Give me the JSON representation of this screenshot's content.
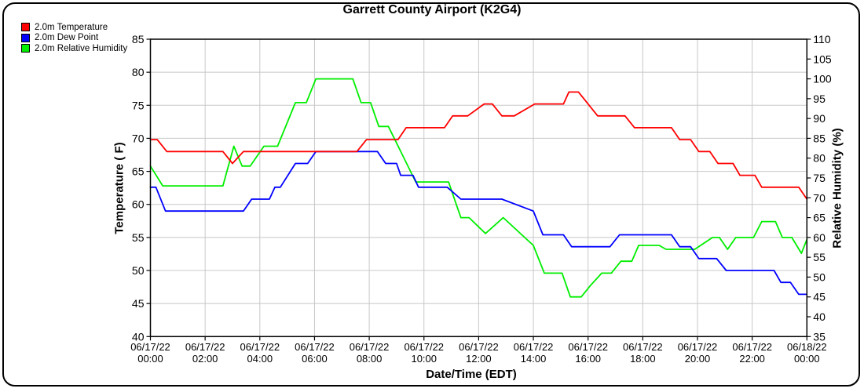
{
  "title": "Garrett County Airport (K2G4)",
  "legend": {
    "items": [
      {
        "label": "2.0m Temperature"
      },
      {
        "label": "2.0m Dew Point"
      },
      {
        "label": "2.0m Relative Humidity"
      }
    ]
  },
  "axes": {
    "y_left": {
      "title": "Temperature ( F)",
      "min": 40,
      "max": 85,
      "step": 5
    },
    "y_right": {
      "title": "Relative Humidity (%)",
      "min": 35,
      "max": 110,
      "step": 5
    },
    "x": {
      "title": "Date/Time (EDT)",
      "range_hours": [
        0,
        24
      ],
      "tick_step_hours": 2,
      "ticks": [
        {
          "date": "06/17/22",
          "time": "00:00"
        },
        {
          "date": "06/17/22",
          "time": "02:00"
        },
        {
          "date": "06/17/22",
          "time": "04:00"
        },
        {
          "date": "06/17/22",
          "time": "06:00"
        },
        {
          "date": "06/17/22",
          "time": "08:00"
        },
        {
          "date": "06/17/22",
          "time": "10:00"
        },
        {
          "date": "06/17/22",
          "time": "12:00"
        },
        {
          "date": "06/17/22",
          "time": "14:00"
        },
        {
          "date": "06/17/22",
          "time": "16:00"
        },
        {
          "date": "06/17/22",
          "time": "18:00"
        },
        {
          "date": "06/17/22",
          "time": "20:00"
        },
        {
          "date": "06/17/22",
          "time": "22:00"
        },
        {
          "date": "06/18/22",
          "time": "00:00"
        }
      ]
    }
  },
  "style": {
    "grid_color": "#c8c8c8",
    "axis_color": "#000000",
    "background": "#ffffff"
  },
  "chart_data": {
    "type": "line",
    "title": "Garrett County Airport (K2G4)",
    "grid": true,
    "x_range_hours": [
      0,
      24
    ],
    "series": [
      {
        "name": "2.0m Temperature",
        "axis": "left",
        "unit": "F",
        "color": "#ff0000",
        "points": [
          [
            0,
            69.8
          ],
          [
            0.25,
            69.8
          ],
          [
            0.6,
            68
          ],
          [
            2.65,
            68
          ],
          [
            3.0,
            66.2
          ],
          [
            3.4,
            68
          ],
          [
            7.55,
            68
          ],
          [
            7.9,
            69.8
          ],
          [
            9.05,
            69.8
          ],
          [
            9.35,
            71.6
          ],
          [
            10.75,
            71.6
          ],
          [
            11.05,
            73.4
          ],
          [
            11.6,
            73.4
          ],
          [
            12.2,
            75.2
          ],
          [
            12.5,
            75.2
          ],
          [
            12.85,
            73.4
          ],
          [
            13.3,
            73.4
          ],
          [
            14.05,
            75.2
          ],
          [
            15.1,
            75.2
          ],
          [
            15.3,
            77
          ],
          [
            15.65,
            77
          ],
          [
            16.35,
            73.4
          ],
          [
            17.35,
            73.4
          ],
          [
            17.7,
            71.6
          ],
          [
            19.05,
            71.6
          ],
          [
            19.35,
            69.8
          ],
          [
            19.75,
            69.8
          ],
          [
            20.05,
            68
          ],
          [
            20.45,
            68
          ],
          [
            20.75,
            66.2
          ],
          [
            21.3,
            66.2
          ],
          [
            21.55,
            64.4
          ],
          [
            22.1,
            64.4
          ],
          [
            22.35,
            62.6
          ],
          [
            23.7,
            62.6
          ],
          [
            24,
            60.8
          ]
        ]
      },
      {
        "name": "2.0m Dew Point",
        "axis": "left",
        "unit": "F",
        "color": "#0000ff",
        "points": [
          [
            0,
            62.6
          ],
          [
            0.2,
            62.6
          ],
          [
            0.55,
            59
          ],
          [
            3.4,
            59
          ],
          [
            3.7,
            60.8
          ],
          [
            4.35,
            60.8
          ],
          [
            4.55,
            62.6
          ],
          [
            4.75,
            62.6
          ],
          [
            5.3,
            66.2
          ],
          [
            5.75,
            66.2
          ],
          [
            6.05,
            68
          ],
          [
            8.3,
            68
          ],
          [
            8.6,
            66.2
          ],
          [
            9.0,
            66.2
          ],
          [
            9.15,
            64.4
          ],
          [
            9.6,
            64.4
          ],
          [
            9.8,
            62.6
          ],
          [
            10.85,
            62.6
          ],
          [
            11.35,
            60.8
          ],
          [
            12.85,
            60.8
          ],
          [
            14.0,
            59
          ],
          [
            14.35,
            55.4
          ],
          [
            15.1,
            55.4
          ],
          [
            15.4,
            53.6
          ],
          [
            16.8,
            53.6
          ],
          [
            17.15,
            55.4
          ],
          [
            19.05,
            55.4
          ],
          [
            19.35,
            53.6
          ],
          [
            19.75,
            53.6
          ],
          [
            20.05,
            51.8
          ],
          [
            20.7,
            51.8
          ],
          [
            21.05,
            50
          ],
          [
            22.8,
            50
          ],
          [
            23.05,
            48.2
          ],
          [
            23.4,
            48.2
          ],
          [
            23.7,
            46.4
          ],
          [
            24,
            46.4
          ]
        ]
      },
      {
        "name": "2.0m Relative Humidity",
        "axis": "right",
        "unit": "%",
        "color": "#00ee00",
        "points": [
          [
            0,
            78
          ],
          [
            0.45,
            73
          ],
          [
            2.65,
            73
          ],
          [
            3.05,
            83
          ],
          [
            3.35,
            78
          ],
          [
            3.65,
            78
          ],
          [
            4.15,
            83
          ],
          [
            4.65,
            83
          ],
          [
            5.3,
            94
          ],
          [
            5.7,
            94
          ],
          [
            6.05,
            100
          ],
          [
            7.4,
            100
          ],
          [
            7.7,
            94
          ],
          [
            8.05,
            94
          ],
          [
            8.35,
            88
          ],
          [
            8.7,
            88
          ],
          [
            9.7,
            74
          ],
          [
            10.9,
            74
          ],
          [
            11.2,
            68
          ],
          [
            11.35,
            65
          ],
          [
            11.65,
            65
          ],
          [
            12.25,
            61
          ],
          [
            12.9,
            65
          ],
          [
            14.0,
            58
          ],
          [
            14.4,
            51
          ],
          [
            15.05,
            51
          ],
          [
            15.35,
            45
          ],
          [
            15.75,
            45
          ],
          [
            16.1,
            48
          ],
          [
            16.5,
            51
          ],
          [
            16.85,
            51
          ],
          [
            17.2,
            54
          ],
          [
            17.6,
            54
          ],
          [
            17.85,
            58
          ],
          [
            18.6,
            58
          ],
          [
            18.85,
            57
          ],
          [
            19.9,
            57
          ],
          [
            20.55,
            60
          ],
          [
            20.8,
            60
          ],
          [
            21.1,
            57
          ],
          [
            21.4,
            60
          ],
          [
            22.05,
            60
          ],
          [
            22.35,
            64
          ],
          [
            22.85,
            64
          ],
          [
            23.1,
            60
          ],
          [
            23.45,
            60
          ],
          [
            23.8,
            56
          ],
          [
            24,
            59.5
          ]
        ]
      }
    ]
  }
}
